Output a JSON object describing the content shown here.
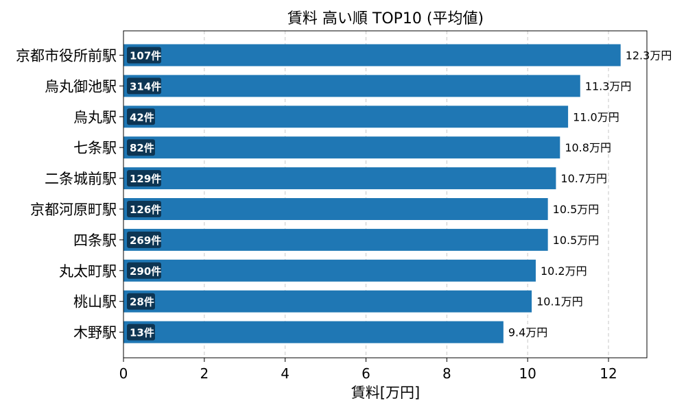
{
  "chart_data": {
    "type": "bar",
    "orientation": "horizontal",
    "title": "賃料 高い順 TOP10 (平均値)",
    "xlabel": "賃料[万円]",
    "ylabel": "",
    "xlim": [
      0,
      12.95
    ],
    "xticks": [
      0,
      2,
      4,
      6,
      8,
      10,
      12
    ],
    "grid": "x-dashed",
    "bar_color": "#1f77b4",
    "badge_color": "#0d3553",
    "categories": [
      "京都市役所前駅",
      "烏丸御池駅",
      "烏丸駅",
      "七条駅",
      "二条城前駅",
      "京都河原町駅",
      "四条駅",
      "丸太町駅",
      "桃山駅",
      "木野駅"
    ],
    "values": [
      12.3,
      11.3,
      11.0,
      10.8,
      10.7,
      10.5,
      10.5,
      10.2,
      10.1,
      9.4
    ],
    "value_labels": [
      "12.3万円",
      "11.3万円",
      "11.0万円",
      "10.8万円",
      "10.7万円",
      "10.5万円",
      "10.5万円",
      "10.2万円",
      "10.1万円",
      "9.4万円"
    ],
    "count_labels": [
      "107件",
      "314件",
      "42件",
      "82件",
      "129件",
      "126件",
      "269件",
      "290件",
      "28件",
      "13件"
    ]
  }
}
